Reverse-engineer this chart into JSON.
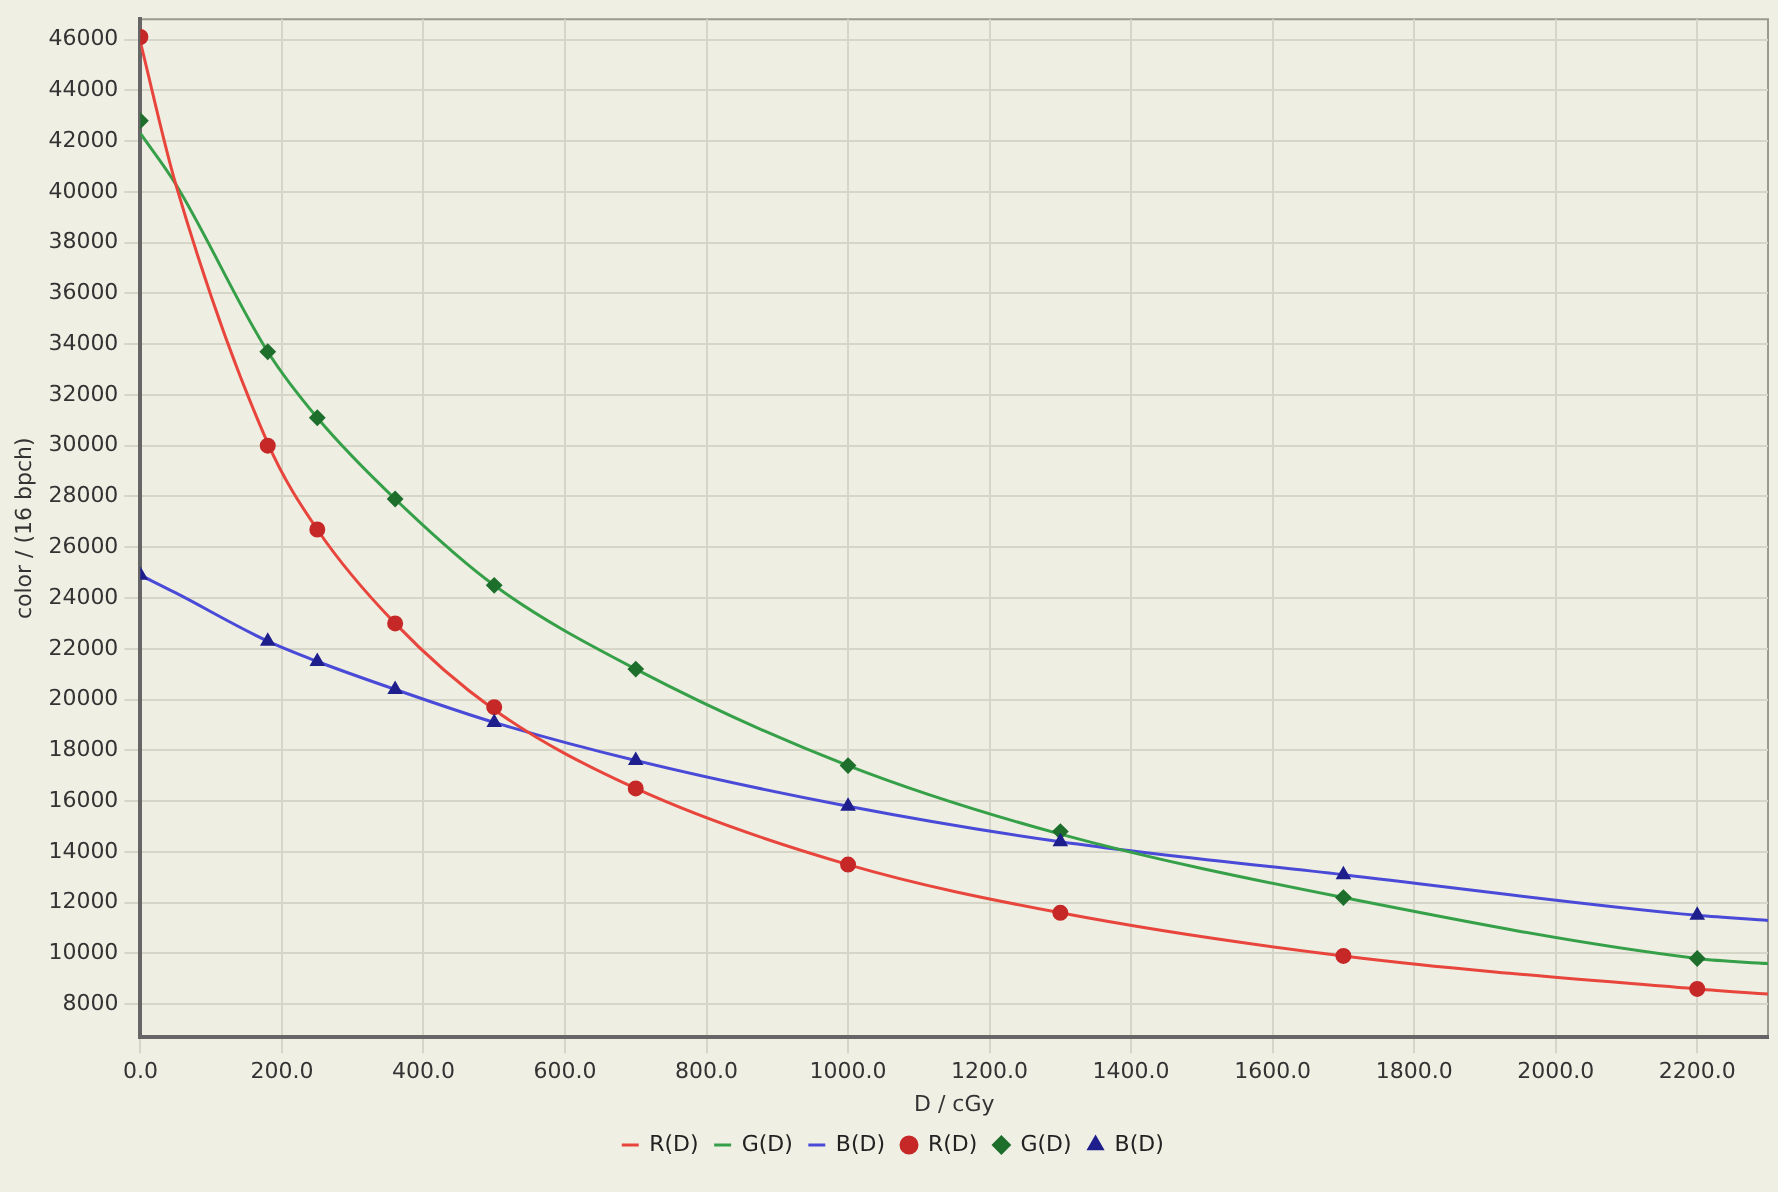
{
  "chart_data": {
    "type": "scatter",
    "xlabel": "D / cGy",
    "ylabel": "color / (16 bpch)",
    "xlim": [
      0,
      2300
    ],
    "ylim": [
      6700,
      46800
    ],
    "xticks": [
      {
        "value": 0,
        "label": "0.0"
      },
      {
        "value": 200,
        "label": "200.0"
      },
      {
        "value": 400,
        "label": "400.0"
      },
      {
        "value": 600,
        "label": "600.0"
      },
      {
        "value": 800,
        "label": "800.0"
      },
      {
        "value": 1000,
        "label": "1000.0"
      },
      {
        "value": 1200,
        "label": "1200.0"
      },
      {
        "value": 1400,
        "label": "1400.0"
      },
      {
        "value": 1600,
        "label": "1600.0"
      },
      {
        "value": 1800,
        "label": "1800.0"
      },
      {
        "value": 2000,
        "label": "2000.0"
      },
      {
        "value": 2200,
        "label": "2200.0"
      }
    ],
    "yticks": [
      8000,
      10000,
      12000,
      14000,
      16000,
      18000,
      20000,
      22000,
      24000,
      26000,
      28000,
      30000,
      32000,
      34000,
      36000,
      38000,
      40000,
      42000,
      44000,
      46000
    ],
    "grid": true,
    "legend": "bottom",
    "series": [
      {
        "name": "R(D)",
        "type": "line",
        "marker": "none",
        "color": "#e8453c",
        "x": [
          0,
          50,
          180,
          250,
          360,
          500,
          700,
          1000,
          1300,
          1700,
          2200,
          2300
        ],
        "values": [
          45900,
          40300,
          30100,
          26700,
          23000,
          19600,
          16500,
          13500,
          11600,
          9900,
          8600,
          8400
        ]
      },
      {
        "name": "G(D)",
        "type": "line",
        "marker": "none",
        "color": "#36a048",
        "x": [
          0,
          50,
          180,
          250,
          360,
          500,
          700,
          1000,
          1300,
          1700,
          2200,
          2300
        ],
        "values": [
          42300,
          40300,
          33700,
          31100,
          27900,
          24500,
          21200,
          17400,
          14700,
          12200,
          9800,
          9600
        ]
      },
      {
        "name": "B(D)",
        "type": "line",
        "marker": "none",
        "color": "#4a4ad8",
        "x": [
          0,
          50,
          180,
          250,
          360,
          500,
          700,
          1000,
          1300,
          1700,
          2200,
          2300
        ],
        "values": [
          24900,
          24200,
          22300,
          21500,
          20400,
          19100,
          17600,
          15800,
          14400,
          13100,
          11500,
          11300
        ]
      },
      {
        "name": "R(D)",
        "marker": "circle",
        "color": "#c62828",
        "x": [
          0,
          180,
          250,
          360,
          500,
          700,
          1000,
          1300,
          1700,
          2200
        ],
        "values": [
          46100,
          30000,
          26700,
          23000,
          19700,
          16500,
          13500,
          11600,
          9900,
          8600
        ]
      },
      {
        "name": "G(D)",
        "marker": "diamond",
        "color": "#1e6e2c",
        "x": [
          0,
          180,
          250,
          360,
          500,
          700,
          1000,
          1300,
          1700,
          2200
        ],
        "values": [
          42800,
          33700,
          31100,
          27900,
          24500,
          21200,
          17400,
          14800,
          12200,
          9800
        ]
      },
      {
        "name": "B(D)",
        "marker": "triangle",
        "color": "#1e1e8c",
        "x": [
          0,
          180,
          250,
          360,
          500,
          700,
          1000,
          1300,
          1700,
          2200
        ],
        "values": [
          24900,
          22300,
          21500,
          20400,
          19100,
          17600,
          15800,
          14400,
          13100,
          11500
        ]
      }
    ]
  }
}
